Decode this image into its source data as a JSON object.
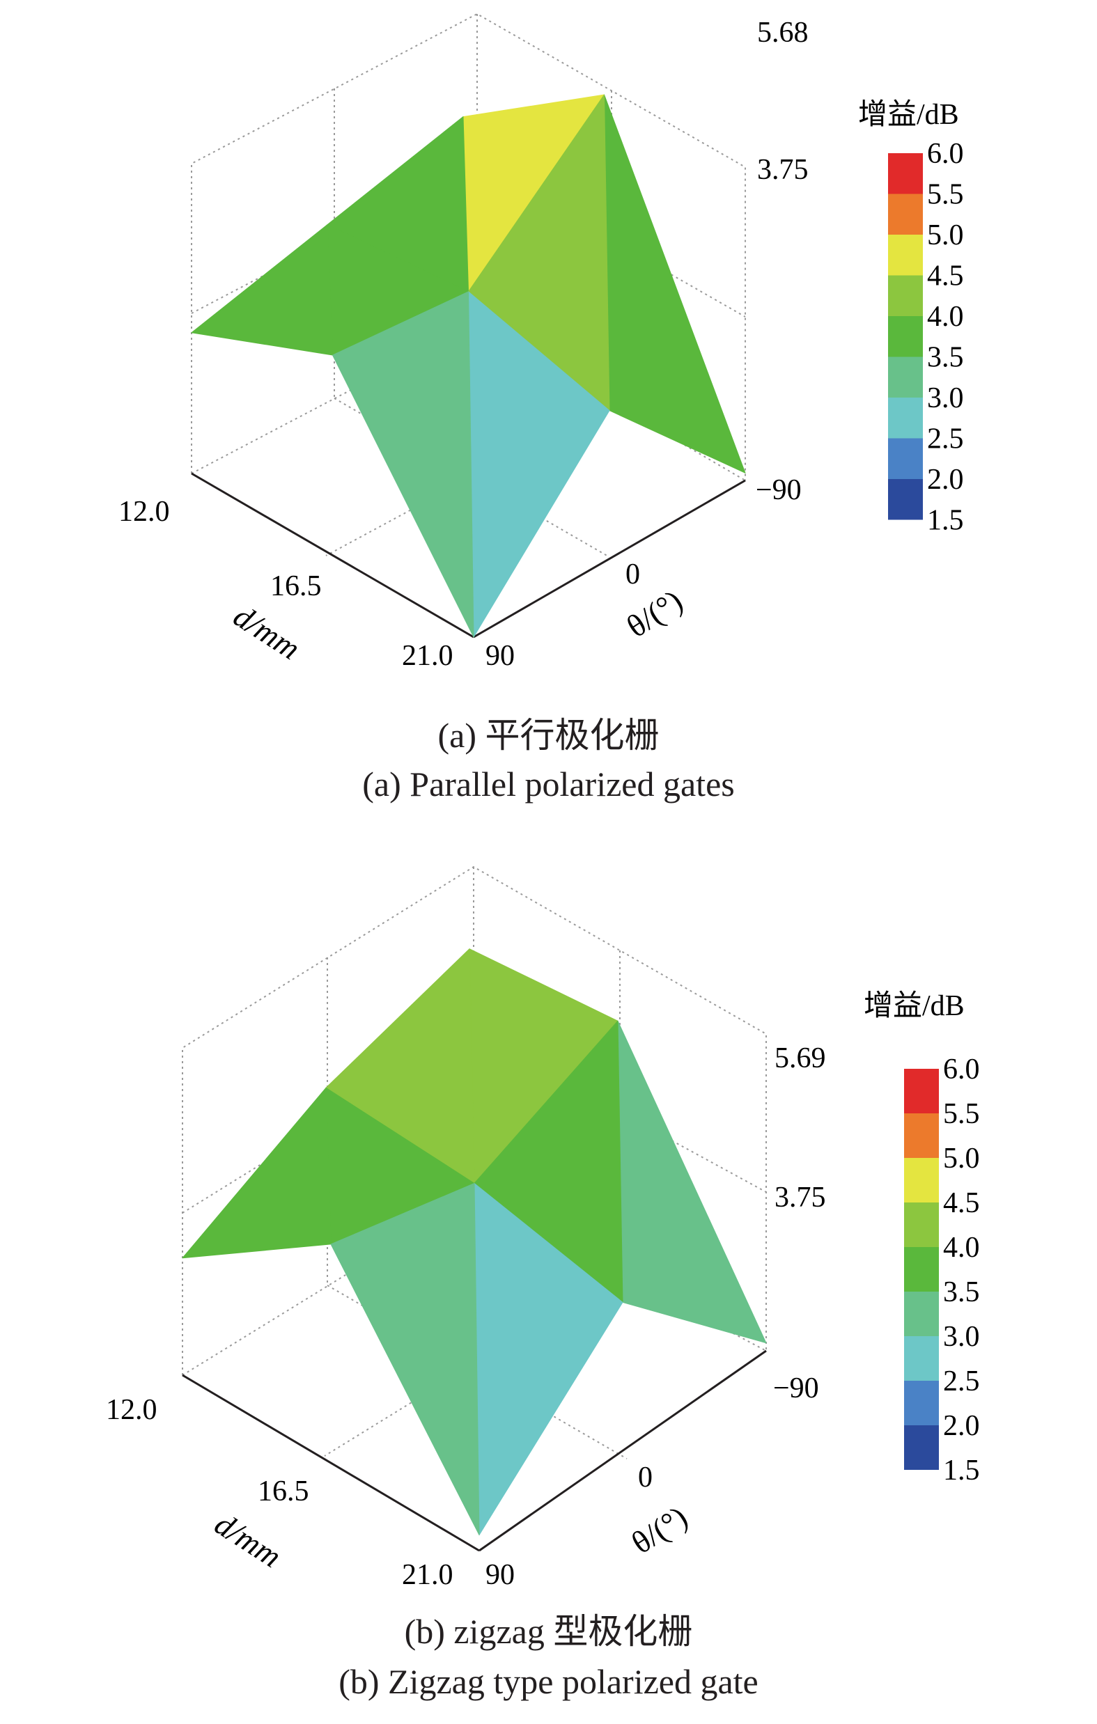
{
  "chart_data": [
    {
      "type": "surface3d",
      "caption_cn": "(a) 平行极化栅",
      "caption_en": "(a) Parallel polarized gates",
      "z_ticks": [
        "3.75",
        "5.68"
      ],
      "d_ticks": [
        "12.0",
        "16.5",
        "21.0"
      ],
      "theta_ticks": [
        "−90",
        "0",
        "90"
      ],
      "d_label": "d/mm",
      "theta_label": "θ/(°)",
      "colorbar": {
        "title": "增益/dB",
        "ticks": [
          "6.0",
          "5.5",
          "5.0",
          "4.5",
          "4.0",
          "3.5",
          "3.0",
          "2.5",
          "2.0",
          "1.5"
        ],
        "colors": [
          "#e12a2a",
          "#ec7a2c",
          "#e4e540",
          "#8cc63f",
          "#5ab83c",
          "#68c18a",
          "#6dc7c7",
          "#4a82c6",
          "#2b4a9c"
        ]
      },
      "d": [
        12.0,
        16.5,
        21.0
      ],
      "theta": [
        -90,
        0,
        90
      ],
      "z": [
        [
          4.2,
          3.8,
          3.4
        ],
        [
          5.6,
          4.0,
          4.2
        ],
        [
          1.6,
          3.5,
          1.5
        ]
      ]
    },
    {
      "type": "surface3d",
      "caption_cn": "(b) zigzag 型极化栅",
      "caption_en": "(b) Zigzag type polarized gate",
      "z_ticks": [
        "3.75",
        "5.69"
      ],
      "d_ticks": [
        "12.0",
        "16.5",
        "21.0"
      ],
      "theta_ticks": [
        "−90",
        "0",
        "90"
      ],
      "d_label": "d/mm",
      "theta_label": "θ/(°)",
      "colorbar": {
        "title": "增益/dB",
        "ticks": [
          "6.0",
          "5.5",
          "5.0",
          "4.5",
          "4.0",
          "3.5",
          "3.0",
          "2.5",
          "2.0",
          "1.5"
        ],
        "colors": [
          "#e12a2a",
          "#ec7a2c",
          "#e4e540",
          "#8cc63f",
          "#5ab83c",
          "#68c18a",
          "#6dc7c7",
          "#4a82c6",
          "#2b4a9c"
        ]
      },
      "d": [
        12.0,
        16.5,
        21.0
      ],
      "theta": [
        -90,
        0,
        90
      ],
      "z": [
        [
          4.4,
          3.9,
          3.0
        ],
        [
          4.6,
          3.8,
          4.3
        ],
        [
          1.6,
          3.4,
          1.7
        ]
      ]
    }
  ]
}
